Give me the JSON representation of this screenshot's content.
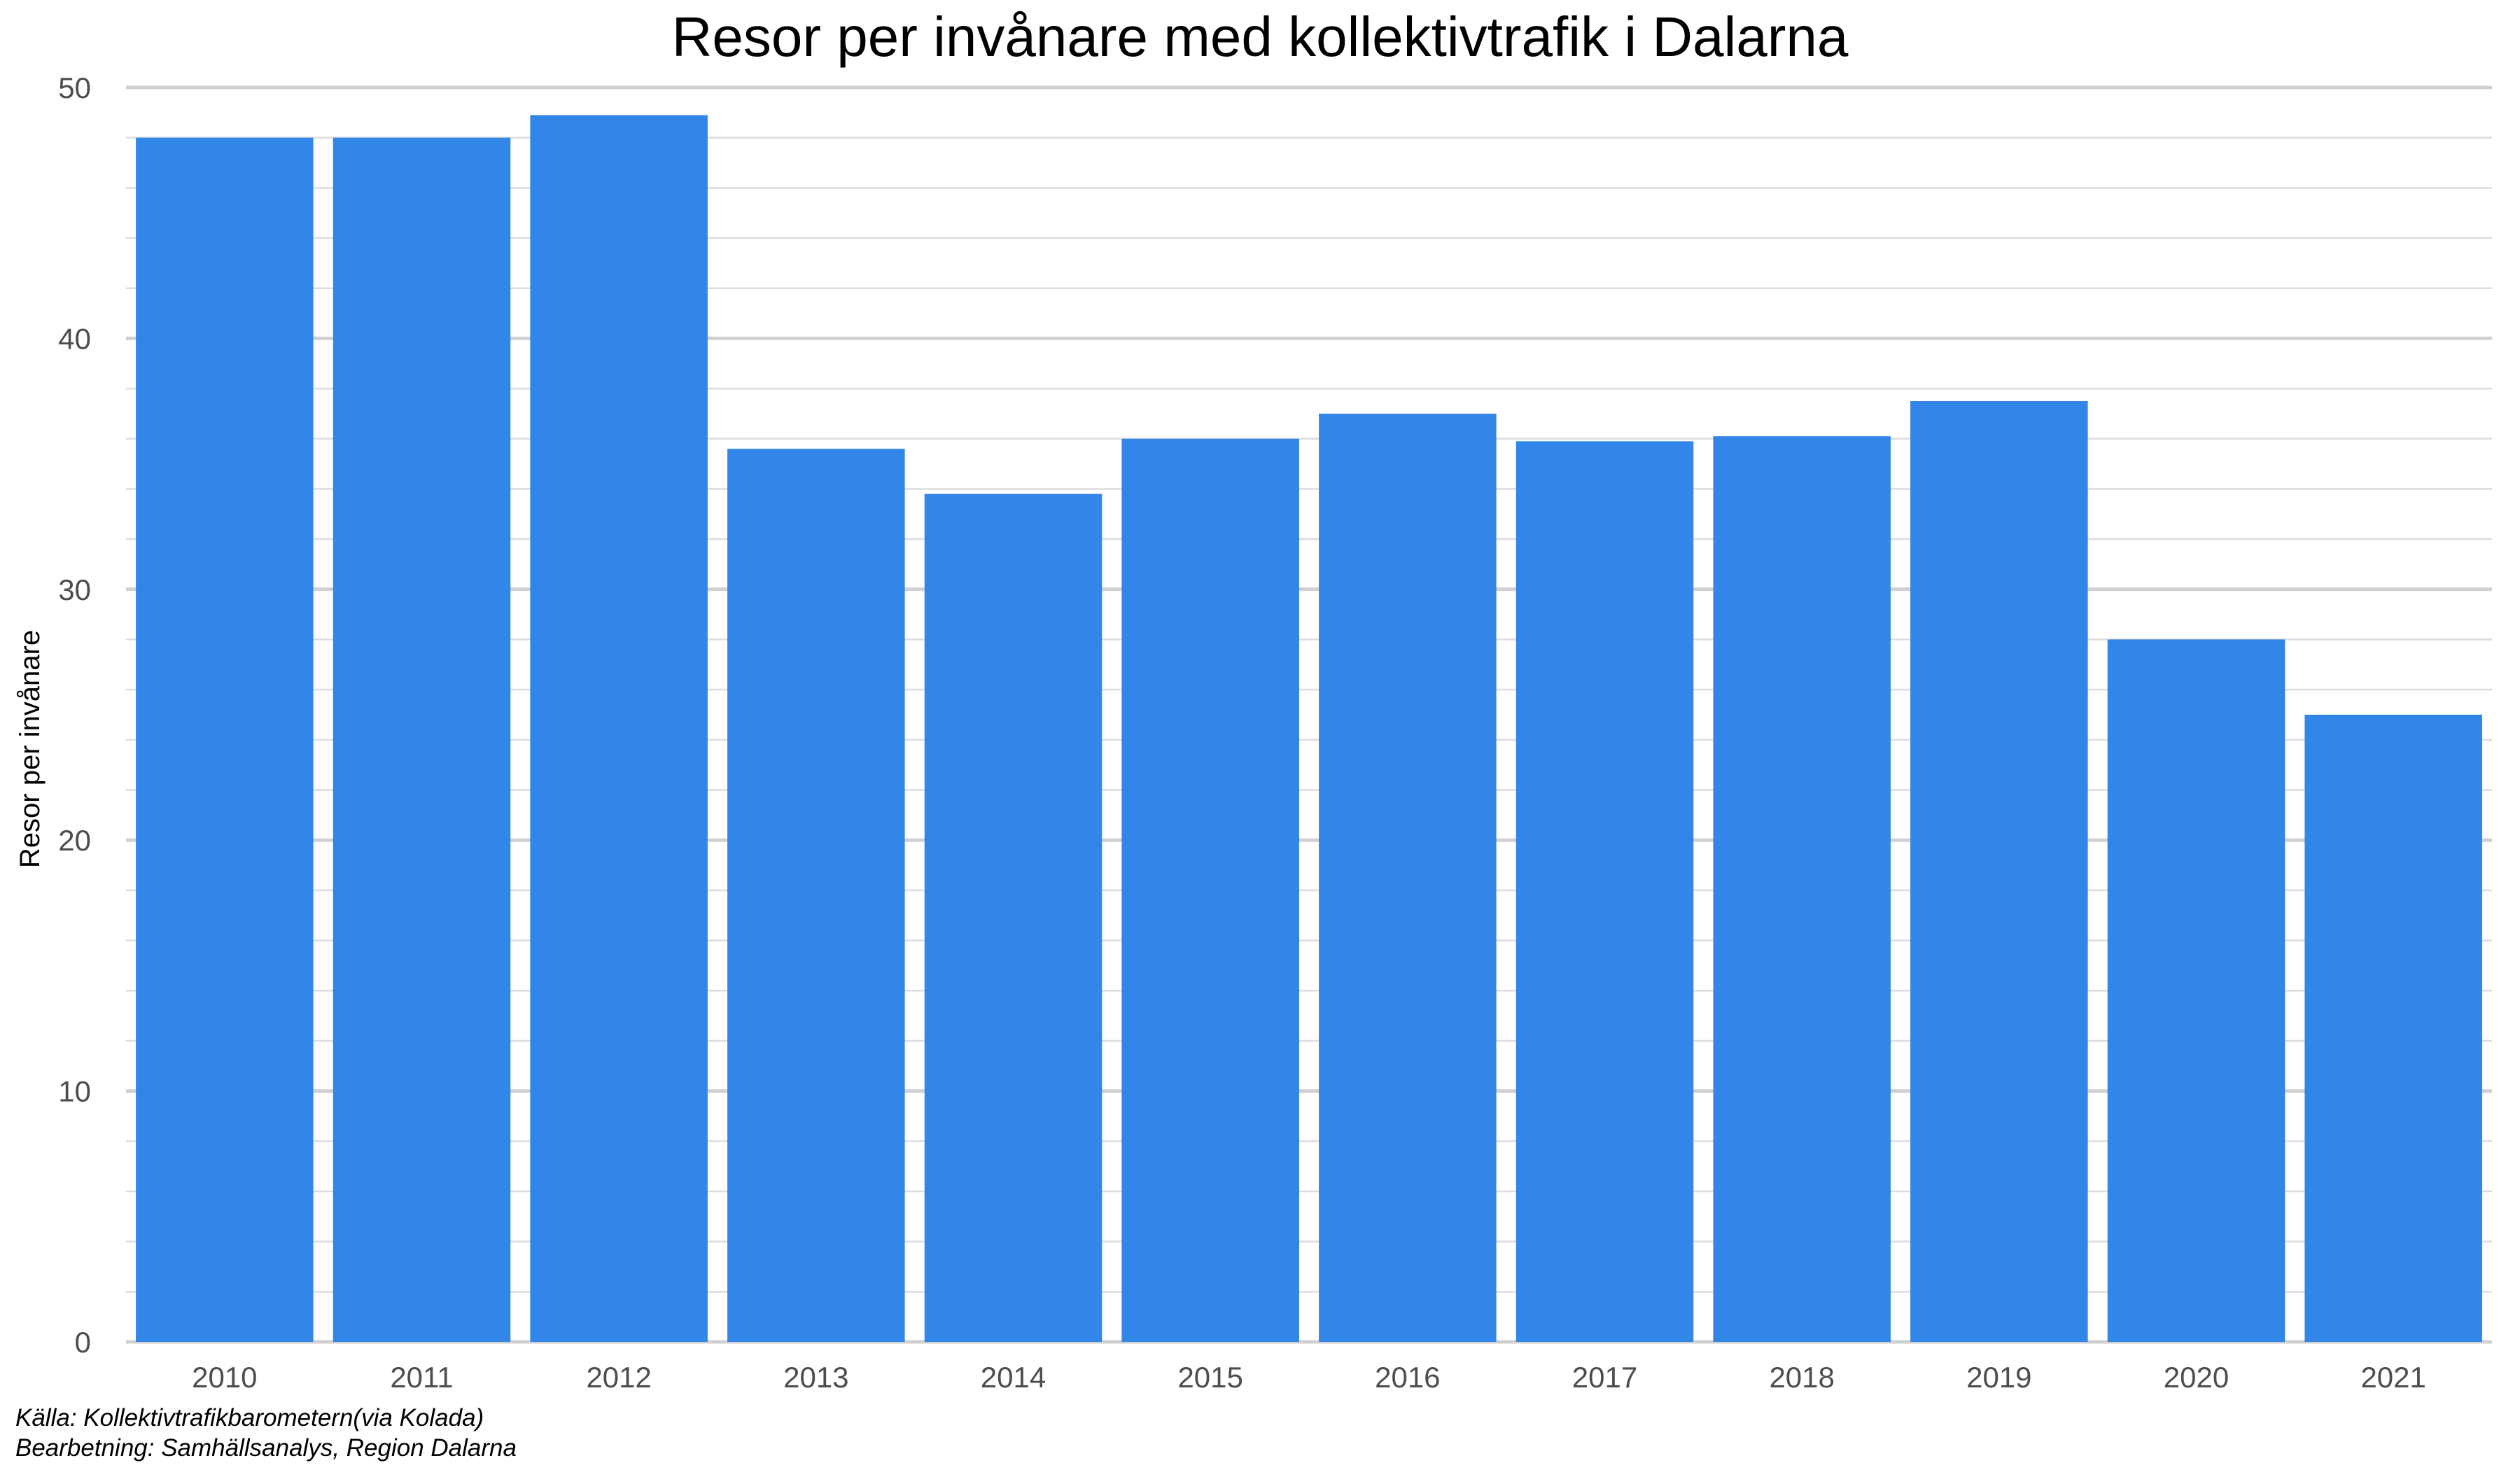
{
  "chart_data": {
    "type": "bar",
    "title": "Resor per invånare med kollektivtrafik i Dalarna",
    "xlabel": "",
    "ylabel": "Resor per invånare",
    "categories": [
      "2010",
      "2011",
      "2012",
      "2013",
      "2014",
      "2015",
      "2016",
      "2017",
      "2018",
      "2019",
      "2020",
      "2021"
    ],
    "values": [
      48,
      48,
      48.9,
      35.6,
      33.8,
      36,
      37,
      35.9,
      36.1,
      37.5,
      28,
      25
    ],
    "ylim": [
      0,
      50
    ],
    "yticks": [
      "0",
      "10",
      "20",
      "30",
      "40",
      "50"
    ],
    "bar_color": "#3186E8",
    "grid": true,
    "legend": "none"
  },
  "caption": {
    "source": "Källa: Kollektivtrafikbarometern(via Kolada)",
    "processing": "Bearbetning: Samhällsanalys, Region Dalarna"
  }
}
